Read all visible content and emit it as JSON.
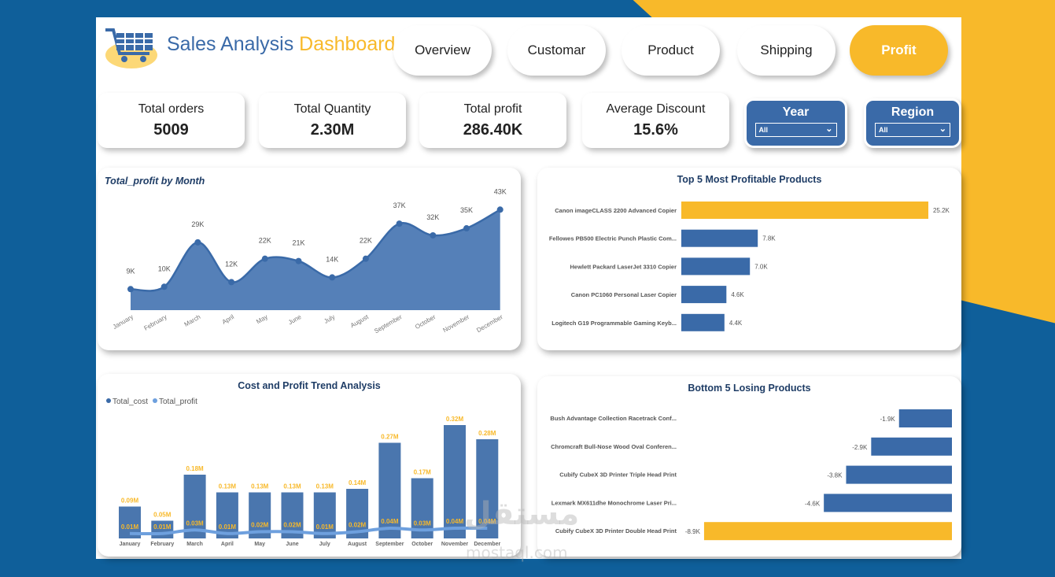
{
  "header": {
    "title_part1": "Sales Analysis",
    "title_part2": "Dashboard"
  },
  "nav": [
    {
      "label": "Overview"
    },
    {
      "label": "Customar"
    },
    {
      "label": "Product"
    },
    {
      "label": "Shipping"
    },
    {
      "label": "Profit",
      "active": true
    }
  ],
  "kpis": [
    {
      "label": "Total orders",
      "value": "5009"
    },
    {
      "label": "Total Quantity",
      "value": "2.30M"
    },
    {
      "label": "Total profit",
      "value": "286.40K"
    },
    {
      "label": "Average Discount",
      "value": "15.6%"
    }
  ],
  "slicers": [
    {
      "label": "Year",
      "value": "All"
    },
    {
      "label": "Region",
      "value": "All"
    }
  ],
  "colors": {
    "blue": "#3a6aa8",
    "yellow": "#f8b92a",
    "label": "#f8b92a"
  },
  "watermark": {
    "arabic": "مستقل",
    "latin": "mostaql.com"
  },
  "chart_data": [
    {
      "type": "area",
      "title": "Total_profit by Month",
      "categories": [
        "January",
        "February",
        "March",
        "April",
        "May",
        "June",
        "July",
        "August",
        "September",
        "October",
        "November",
        "December"
      ],
      "values": [
        9,
        10,
        29,
        12,
        22,
        21,
        14,
        22,
        37,
        32,
        35,
        43
      ],
      "labels": [
        "9K",
        "10K",
        "29K",
        "12K",
        "22K",
        "21K",
        "14K",
        "22K",
        "37K",
        "32K",
        "35K",
        "43K"
      ],
      "unit": "K"
    },
    {
      "type": "bar",
      "title": "Top 5  Most Profitable Products",
      "categories": [
        "Canon imageCLASS 2200 Advanced Copier",
        "Fellowes PB500 Electric Punch Plastic Com...",
        "Hewlett Packard LaserJet 3310 Copier",
        "Canon PC1060 Personal Laser Copier",
        "Logitech G19 Programmable Gaming Keyb..."
      ],
      "values": [
        25.2,
        7.8,
        7.0,
        4.6,
        4.4
      ],
      "labels": [
        "25.2K",
        "7.8K",
        "7.0K",
        "4.6K",
        "4.4K"
      ],
      "highlight": 0
    },
    {
      "type": "bar",
      "title": "Cost and Profit Trend Analysis",
      "categories": [
        "January",
        "February",
        "March",
        "April",
        "May",
        "June",
        "July",
        "August",
        "September",
        "October",
        "November",
        "December"
      ],
      "series": [
        {
          "name": "Total_cost",
          "type": "bar",
          "values": [
            0.09,
            0.05,
            0.18,
            0.13,
            0.13,
            0.13,
            0.13,
            0.14,
            0.27,
            0.17,
            0.32,
            0.28
          ],
          "labels": [
            "0.09M",
            "0.05M",
            "0.18M",
            "0.13M",
            "0.13M",
            "0.13M",
            "0.13M",
            "0.14M",
            "0.27M",
            "0.17M",
            "0.32M",
            "0.28M"
          ]
        },
        {
          "name": "Total_profit",
          "type": "line",
          "values": [
            0.01,
            0.01,
            0.03,
            0.01,
            0.02,
            0.02,
            0.01,
            0.02,
            0.04,
            0.03,
            0.04,
            0.04
          ],
          "labels": [
            "0.01M",
            "0.01M",
            "0.03M",
            "0.01M",
            "0.02M",
            "0.02M",
            "0.01M",
            "0.02M",
            "0.04M",
            "0.03M",
            "0.04M",
            "0.04M"
          ]
        }
      ],
      "legend": "top-left"
    },
    {
      "type": "bar",
      "title": "Bottom 5 Losing Products",
      "categories": [
        "Bush Advantage Collection Racetrack Conf...",
        "Chromcraft Bull-Nose Wood Oval Conferen...",
        "Cubify CubeX 3D Printer Triple Head Print",
        "Lexmark MX611dhe Monochrome Laser Pri...",
        "Cubify CubeX 3D Printer Double Head Print"
      ],
      "values": [
        -1.9,
        -2.9,
        -3.8,
        -4.6,
        -8.9
      ],
      "labels": [
        "-1.9K",
        "-2.9K",
        "-3.8K",
        "-4.6K",
        "-8.9K"
      ],
      "highlight": 4
    }
  ]
}
